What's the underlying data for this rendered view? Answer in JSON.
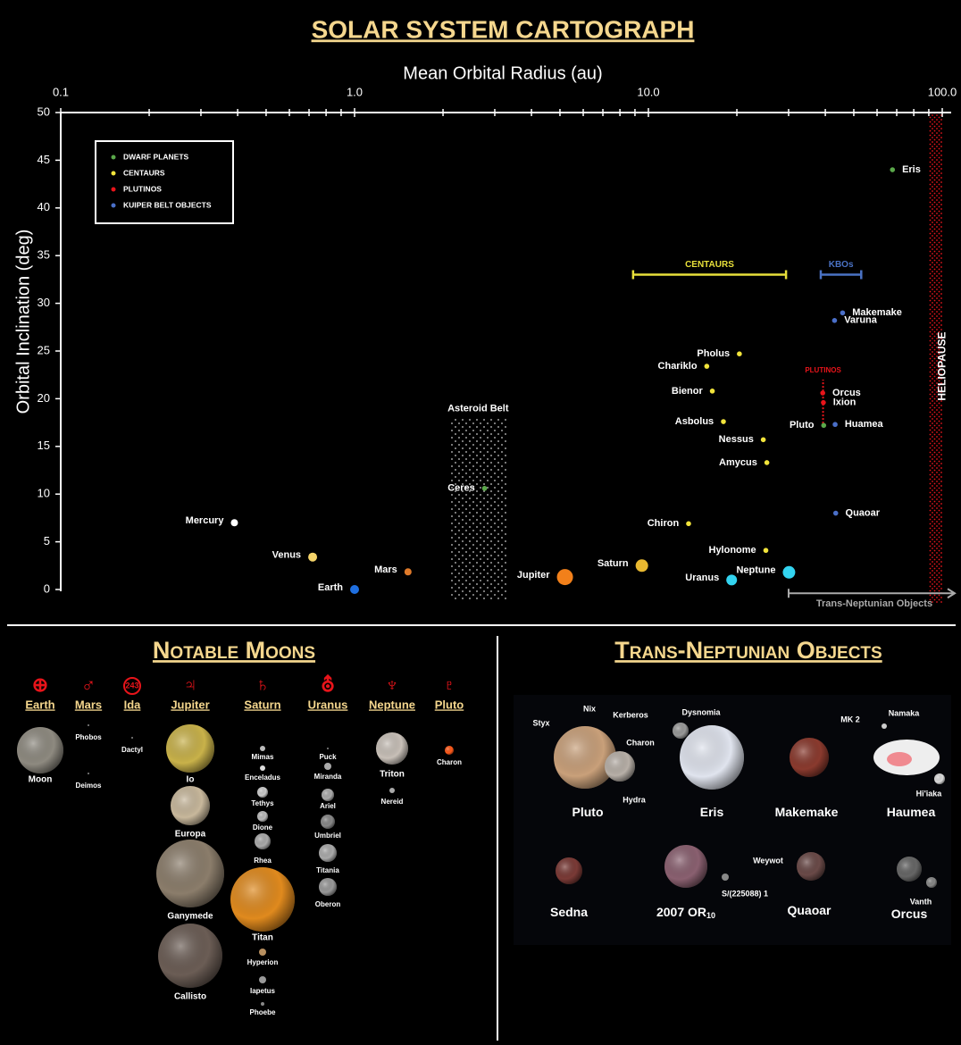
{
  "chart_data": {
    "type": "scatter",
    "title": "SOLAR SYSTEM CARTOGRAPH",
    "xlabel": "Mean Orbital Radius (au)",
    "ylabel": "Orbital Inclination (deg)",
    "xscale": "log",
    "xlim": [
      0.1,
      100
    ],
    "ylim": [
      0,
      50
    ],
    "xticks": [
      {
        "value": 0.1,
        "label": "0.1"
      },
      {
        "value": 1,
        "label": "1.0"
      },
      {
        "value": 10,
        "label": "10.0"
      },
      {
        "value": 100,
        "label": "100.0"
      }
    ],
    "xminorticks": [
      0.2,
      0.3,
      0.4,
      0.5,
      0.6,
      0.7,
      0.8,
      0.9,
      2,
      3,
      4,
      5,
      6,
      7,
      8,
      9,
      20,
      30,
      40,
      50,
      60,
      70,
      80,
      90
    ],
    "yticks": [
      0,
      5,
      10,
      15,
      20,
      25,
      30,
      35,
      40,
      45,
      50
    ],
    "legend": "upper left",
    "series": [
      {
        "colors": [
          "#ffffff",
          "#f5d46a",
          "#1f6fe0",
          "#e07a2a",
          "#f2801a",
          "#e8b830",
          "#33d4f0",
          "#33d4f0"
        ],
        "x": [
          0.39,
          0.72,
          1.0,
          1.52,
          5.2,
          9.5,
          19.2,
          30.1
        ],
        "y": [
          7.0,
          3.4,
          0.0,
          1.85,
          1.3,
          2.5,
          1.0,
          1.8
        ],
        "labels": [
          "Mercury",
          "Venus",
          "Earth",
          "Mars",
          "Jupiter",
          "Saturn",
          "Uranus",
          "Neptune"
        ]
      },
      {
        "name": "DWARF PLANETS",
        "color": "#5aa84a",
        "x": [
          2.77,
          39.5,
          67.7
        ],
        "y": [
          10.6,
          17.2,
          44.0
        ],
        "labels": [
          "Ceres",
          "Pluto",
          "Eris"
        ]
      },
      {
        "name": "CENTAURS",
        "color": "#f2e43b",
        "x": [
          20.4,
          15.8,
          16.5,
          18.0,
          24.6,
          25.3,
          13.7,
          25.1
        ],
        "y": [
          24.7,
          23.4,
          20.8,
          17.6,
          15.7,
          13.3,
          6.9,
          4.1
        ],
        "labels": [
          "Pholus",
          "Chariklo",
          "Bienor",
          "Asbolus",
          "Nessus",
          "Amycus",
          "Chiron",
          "Hylonome"
        ]
      },
      {
        "name": "PLUTINOS",
        "color": "#e8141a",
        "x": [
          39.2,
          39.4
        ],
        "y": [
          20.6,
          19.6
        ],
        "labels": [
          "Orcus",
          "Ixion"
        ]
      },
      {
        "name": "KUIPER BELT OBJECTS",
        "color": "#4a6fc8",
        "x": [
          45.8,
          43.0,
          43.2,
          43.4
        ],
        "y": [
          29.0,
          28.2,
          17.3,
          8.0
        ],
        "labels": [
          "Makemake",
          "Varuna",
          "Huamea",
          "Quaoar"
        ]
      }
    ],
    "annotations": [
      {
        "kind": "range",
        "text": "CENTAURS",
        "x": [
          8.87,
          29.4
        ],
        "y": 33,
        "color": "#e8e03a"
      },
      {
        "kind": "range",
        "text": "KBOs",
        "x": [
          38.6,
          53
        ],
        "y": 33,
        "color": "#4a72c4"
      },
      {
        "kind": "vline",
        "text": "PLUTINOS",
        "x": 39.3,
        "y": [
          17.4,
          22.0
        ],
        "color": "#e8141a"
      },
      {
        "kind": "region",
        "text": "Asteroid Belt",
        "x": [
          2.1,
          3.3
        ],
        "y": [
          -1.2,
          18
        ],
        "color": "#ffffff"
      },
      {
        "kind": "band",
        "text": "HELIOPAUSE",
        "x": [
          90,
          100
        ],
        "color": "#e8141a"
      },
      {
        "kind": "arrow",
        "text": "Trans-Neptunian Objects",
        "x": [
          30,
          100
        ],
        "y": -0.4,
        "color": "#aaaaaa"
      }
    ]
  },
  "moons": {
    "title": "Notable Moons",
    "planets": [
      {
        "symbol": "⊕",
        "name": "Earth",
        "moons": [
          "Moon"
        ]
      },
      {
        "symbol": "♂",
        "name": "Mars",
        "moons": [
          "Phobos",
          "Deimos"
        ]
      },
      {
        "symbol": "243",
        "name": "Ida",
        "moons": [
          "Dactyl"
        ]
      },
      {
        "symbol": "♃",
        "name": "Jupiter",
        "moons": [
          "Io",
          "Europa",
          "Ganymede",
          "Callisto"
        ]
      },
      {
        "symbol": "♄",
        "name": "Saturn",
        "moons": [
          "Mimas",
          "Enceladus",
          "Tethys",
          "Dione",
          "Rhea",
          "Titan",
          "Hyperion",
          "Iapetus",
          "Phoebe"
        ]
      },
      {
        "symbol": "⛢",
        "name": "Uranus",
        "moons": [
          "Puck",
          "Miranda",
          "Ariel",
          "Umbriel",
          "Titania",
          "Oberon"
        ]
      },
      {
        "symbol": "♆",
        "name": "Neptune",
        "moons": [
          "Triton",
          "Nereid"
        ]
      },
      {
        "symbol": "♇",
        "name": "Pluto",
        "moons": [
          "Charon"
        ]
      }
    ]
  },
  "tnos": {
    "title": "Trans-Neptunian Objects",
    "objects": [
      {
        "name": "Pluto",
        "satellites": [
          "Styx",
          "Nix",
          "Kerberos",
          "Charon",
          "Hydra"
        ]
      },
      {
        "name": "Eris",
        "satellites": [
          "Dysnomia"
        ]
      },
      {
        "name": "Makemake",
        "satellites": [
          "MK 2"
        ]
      },
      {
        "name": "Haumea",
        "satellites": [
          "Namaka",
          "Hi'iaka"
        ]
      },
      {
        "name": "Sedna",
        "satellites": []
      },
      {
        "name": "2007 OR",
        "subscript": "10",
        "satellites": [
          "S/(225088) 1"
        ]
      },
      {
        "name": "Quaoar",
        "satellites": [
          "Weywot"
        ]
      },
      {
        "name": "Orcus",
        "satellites": [
          "Vanth"
        ]
      }
    ]
  }
}
